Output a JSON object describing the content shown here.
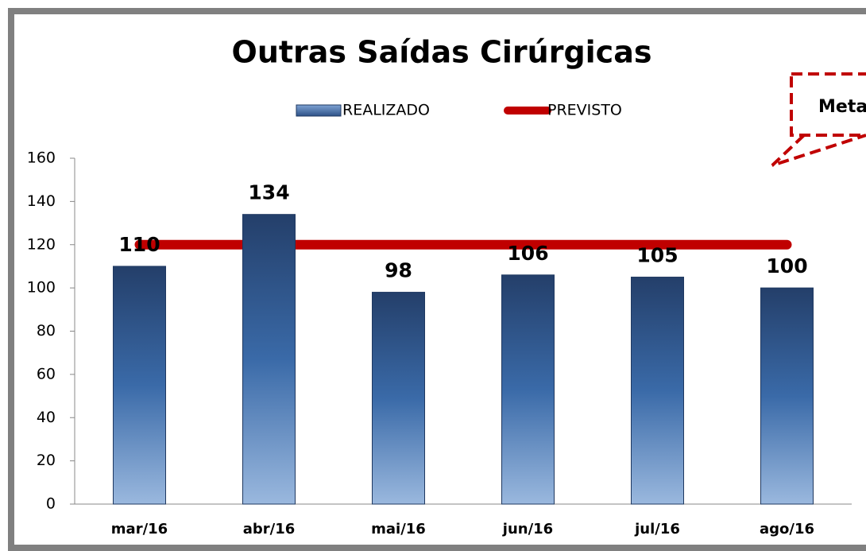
{
  "chart_data": {
    "type": "bar",
    "title": "Outras Saídas Cirúrgicas",
    "categories": [
      "mar/16",
      "abr/16",
      "mai/16",
      "jun/16",
      "jul/16",
      "ago/16"
    ],
    "series": [
      {
        "name": "REALIZADO",
        "type": "bar",
        "color": "#3a6aa8",
        "values": [
          110,
          134,
          98,
          106,
          105,
          100
        ]
      },
      {
        "name": "PREVISTO",
        "type": "line",
        "color": "#c00000",
        "values": [
          120,
          120,
          120,
          120,
          120,
          120
        ]
      }
    ],
    "ylim": [
      0,
      160
    ],
    "yticks": [
      0,
      20,
      40,
      60,
      80,
      100,
      120,
      140,
      160
    ],
    "annotation": "Meta"
  }
}
